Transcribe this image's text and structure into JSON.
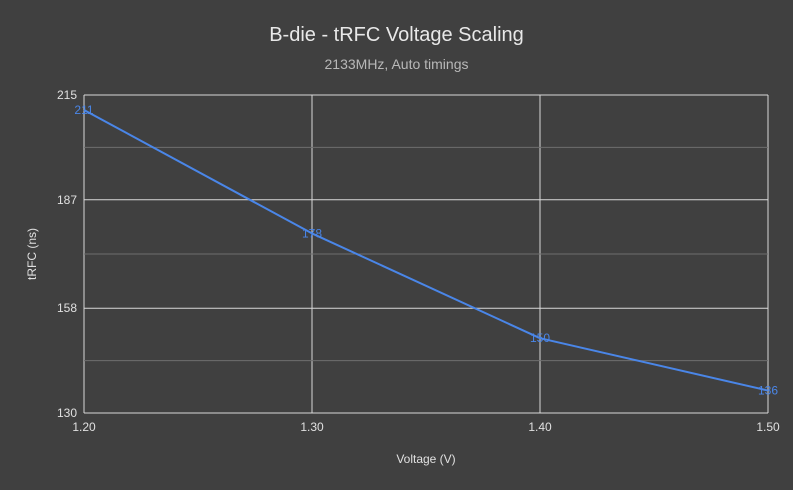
{
  "chart_data": {
    "type": "line",
    "title": "B-die - tRFC Voltage Scaling",
    "subtitle": "2133MHz, Auto timings",
    "xlabel": "Voltage (V)",
    "ylabel": "tRFC (ns)",
    "x": [
      1.2,
      1.3,
      1.4,
      1.5
    ],
    "x_tick_labels": [
      "1.20",
      "1.30",
      "1.40",
      "1.50"
    ],
    "xlim": [
      1.2,
      1.5
    ],
    "ylim": [
      130,
      215
    ],
    "y_tick_labels": [
      "130",
      "158",
      "187",
      "215"
    ],
    "y_major_ticks": [
      130,
      158,
      187,
      215
    ],
    "grid": true,
    "series": [
      {
        "color": "#4a86e8",
        "values": [
          211,
          178,
          150,
          136
        ],
        "data_labels": [
          "211",
          "178",
          "150",
          "136"
        ]
      }
    ],
    "colors": {
      "background": "#404040",
      "grid": "#d9d9d9",
      "text": "#e0e0e0",
      "line": "#4a86e8"
    }
  }
}
